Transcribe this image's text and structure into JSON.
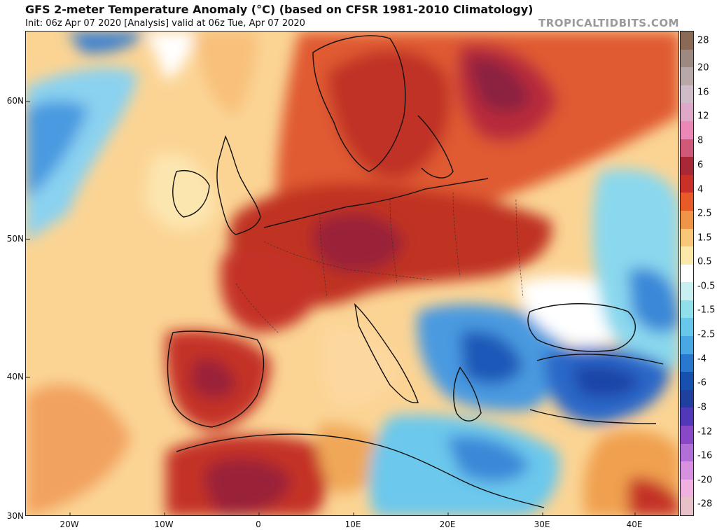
{
  "header": {
    "title": "GFS 2-meter Temperature Anomaly (°C) (based on CFSR 1981-2010 Climatology)",
    "subtitle": "Init: 06z Apr 07 2020   [Analysis]   valid at 06z Tue, Apr 07 2020",
    "credit": "TROPICALTIDBITS.COM"
  },
  "axes": {
    "latitude_labels": [
      "60N",
      "50N",
      "40N",
      "30N"
    ],
    "longitude_labels": [
      "20W",
      "10W",
      "0",
      "10E",
      "20E",
      "30E",
      "40E"
    ]
  },
  "colorbar": {
    "labels": [
      "28",
      "20",
      "16",
      "12",
      "8",
      "6",
      "4",
      "2.5",
      "1.5",
      "0.5",
      "-0.5",
      "-1.5",
      "-2.5",
      "-4",
      "-6",
      "-8",
      "-12",
      "-16",
      "-20",
      "-28"
    ],
    "colors": [
      "#8a6a55",
      "#9c8a80",
      "#b8a8a8",
      "#d0bcc8",
      "#e0a8c8",
      "#ec88b8",
      "#d05878",
      "#a82838",
      "#c83028",
      "#e85a28",
      "#f09448",
      "#f8c878",
      "#fce8a8",
      "#ffffff",
      "#c8f0f0",
      "#90e0ec",
      "#68c8ec",
      "#48a8e4",
      "#2878d0",
      "#1850b0",
      "#2040a0",
      "#5038b8",
      "#8848c8",
      "#b070d8",
      "#d890e0",
      "#f0b0e0",
      "#e8c0c8"
    ]
  },
  "palette": {
    "warm_extreme": "#7a1838",
    "warm_strong": "#b82a2a",
    "warm_mid": "#e05a30",
    "warm_low": "#f4a060",
    "warm_light": "#fcd898",
    "neutral": "#ffffff",
    "cool_light": "#b8eef2",
    "cool_low": "#6cc8ec",
    "cool_mid": "#3a8ad8",
    "cool_strong": "#1a4ab0",
    "coast": "#111111"
  }
}
